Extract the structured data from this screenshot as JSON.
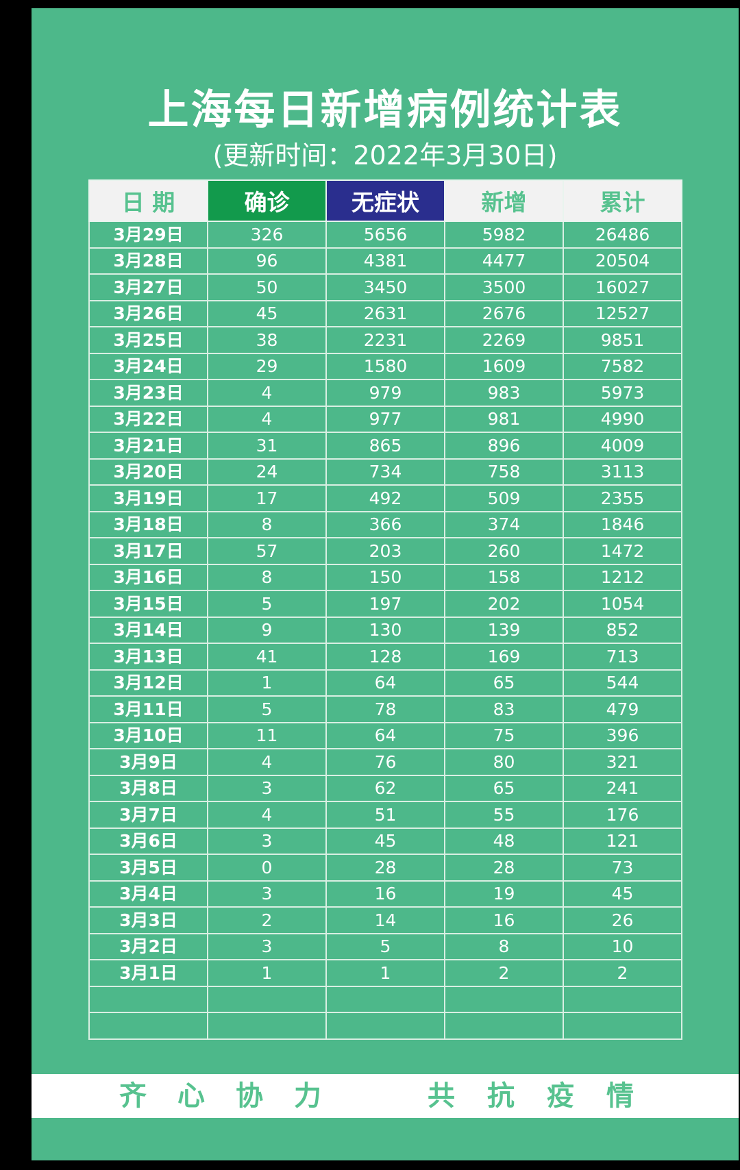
{
  "title": "上海每日新增病例统计表",
  "subtitle": "(更新时间：2022年3月30日)",
  "table": {
    "headers": [
      "日 期",
      "确诊",
      "无症状",
      "新增",
      "累计"
    ],
    "rows": [
      [
        "3月29日",
        "326",
        "5656",
        "5982",
        "26486"
      ],
      [
        "3月28日",
        "96",
        "4381",
        "4477",
        "20504"
      ],
      [
        "3月27日",
        "50",
        "3450",
        "3500",
        "16027"
      ],
      [
        "3月26日",
        "45",
        "2631",
        "2676",
        "12527"
      ],
      [
        "3月25日",
        "38",
        "2231",
        "2269",
        "9851"
      ],
      [
        "3月24日",
        "29",
        "1580",
        "1609",
        "7582"
      ],
      [
        "3月23日",
        "4",
        "979",
        "983",
        "5973"
      ],
      [
        "3月22日",
        "4",
        "977",
        "981",
        "4990"
      ],
      [
        "3月21日",
        "31",
        "865",
        "896",
        "4009"
      ],
      [
        "3月20日",
        "24",
        "734",
        "758",
        "3113"
      ],
      [
        "3月19日",
        "17",
        "492",
        "509",
        "2355"
      ],
      [
        "3月18日",
        "8",
        "366",
        "374",
        "1846"
      ],
      [
        "3月17日",
        "57",
        "203",
        "260",
        "1472"
      ],
      [
        "3月16日",
        "8",
        "150",
        "158",
        "1212"
      ],
      [
        "3月15日",
        "5",
        "197",
        "202",
        "1054"
      ],
      [
        "3月14日",
        "9",
        "130",
        "139",
        "852"
      ],
      [
        "3月13日",
        "41",
        "128",
        "169",
        "713"
      ],
      [
        "3月12日",
        "1",
        "64",
        "65",
        "544"
      ],
      [
        "3月11日",
        "5",
        "78",
        "83",
        "479"
      ],
      [
        "3月10日",
        "11",
        "64",
        "75",
        "396"
      ],
      [
        "3月9日",
        "4",
        "76",
        "80",
        "321"
      ],
      [
        "3月8日",
        "3",
        "62",
        "65",
        "241"
      ],
      [
        "3月7日",
        "4",
        "51",
        "55",
        "176"
      ],
      [
        "3月6日",
        "3",
        "45",
        "48",
        "121"
      ],
      [
        "3月5日",
        "0",
        "28",
        "28",
        "73"
      ],
      [
        "3月4日",
        "3",
        "16",
        "19",
        "45"
      ],
      [
        "3月3日",
        "2",
        "14",
        "16",
        "26"
      ],
      [
        "3月2日",
        "3",
        "5",
        "8",
        "10"
      ],
      [
        "3月1日",
        "1",
        "1",
        "2",
        "2"
      ],
      [
        "",
        "",
        "",
        "",
        ""
      ],
      [
        "",
        "",
        "",
        "",
        ""
      ]
    ]
  },
  "footer": {
    "slogan_left": "齐心协力",
    "slogan_right": "共抗疫情"
  },
  "colors": {
    "background": "#4db88a",
    "header_confirmed": "#129a4c",
    "header_asymptomatic": "#2a2e8e",
    "date_text": "#f2ee1f"
  }
}
